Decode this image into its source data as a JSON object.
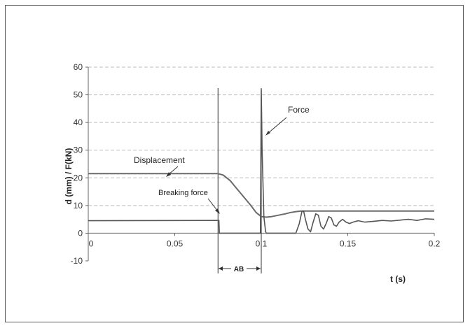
{
  "chart_data": {
    "type": "line",
    "xlabel": "t (s)",
    "ylabel": "d (mm) / F(kN)",
    "xlim": [
      0,
      0.2
    ],
    "ylim": [
      -10,
      60
    ],
    "xticks": [
      0,
      0.05,
      0.1,
      0.15,
      0.2
    ],
    "xtick_labels": [
      "0",
      "0.05",
      "0.1",
      "0.15",
      "0.2"
    ],
    "yticks": [
      -10,
      0,
      10,
      20,
      30,
      40,
      50,
      60
    ],
    "ytick_labels": [
      "-10",
      "0",
      "10",
      "20",
      "30",
      "40",
      "50",
      "60"
    ],
    "grid": "horizontal dashed",
    "series": [
      {
        "name": "Displacement",
        "color": "#6a6a6a",
        "x": [
          0,
          0.075,
          0.078,
          0.082,
          0.086,
          0.09,
          0.094,
          0.097,
          0.1,
          0.103,
          0.106,
          0.11,
          0.114,
          0.117,
          0.12,
          0.123,
          0.13,
          0.2
        ],
        "y": [
          21.5,
          21.5,
          21.0,
          19.0,
          16.0,
          13.0,
          10.0,
          7.5,
          6.0,
          5.8,
          6.0,
          6.5,
          7.0,
          7.5,
          7.8,
          8.0,
          8.0,
          8.0
        ]
      },
      {
        "name": "Force",
        "color": "#555555",
        "x": [
          0,
          0.075,
          0.0755,
          0.0758,
          0.0995,
          0.1,
          0.1005,
          0.1015,
          0.1025,
          0.103,
          0.1035,
          0.12,
          0.122,
          0.1235,
          0.1245,
          0.1255,
          0.127,
          0.1285,
          0.13,
          0.1315,
          0.133,
          0.1345,
          0.136,
          0.1375,
          0.139,
          0.1405,
          0.142,
          0.1435,
          0.145,
          0.147,
          0.149,
          0.151,
          0.153,
          0.156,
          0.16,
          0.165,
          0.17,
          0.175,
          0.18,
          0.185,
          0.19,
          0.195,
          0.2
        ],
        "y": [
          4.5,
          4.6,
          4.6,
          0,
          0,
          52,
          30,
          6,
          0.5,
          0,
          0,
          0,
          3.5,
          7.8,
          8.0,
          5.0,
          1.5,
          0.5,
          4.0,
          7.0,
          6.5,
          2.5,
          1.5,
          3.5,
          6.0,
          5.5,
          3.0,
          2.5,
          4.0,
          5.0,
          4.0,
          3.5,
          4.0,
          4.5,
          4.0,
          4.3,
          4.6,
          4.4,
          4.7,
          5.0,
          4.6,
          5.2,
          5.0
        ]
      }
    ],
    "annotations": [
      {
        "text": "Force",
        "points_to": "force-peak"
      },
      {
        "text": "Displacement",
        "points_to": "displacement-plateau"
      },
      {
        "text": "Breaking force",
        "points_to": "force-drop"
      },
      {
        "text": "AB",
        "spans": [
          0.075,
          0.1
        ]
      }
    ],
    "vertical_lines_x": [
      0.075,
      0.1
    ]
  }
}
